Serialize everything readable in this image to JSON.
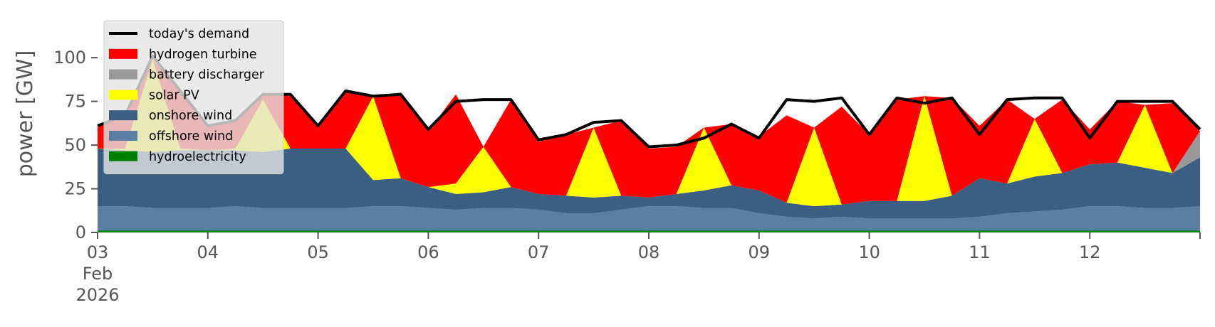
{
  "chart_data": {
    "type": "area",
    "ylabel": "power [GW]",
    "ylim": [
      0,
      120
    ],
    "yticks": [
      "0",
      "25",
      "50",
      "75",
      "100"
    ],
    "xlim": [
      "2026-02-03",
      "2026-02-13"
    ],
    "x_ticks": [
      {
        "date": "2026-02-03",
        "label": "03",
        "sub1": "Feb",
        "sub2": "2026"
      },
      {
        "date": "2026-02-04",
        "label": "04"
      },
      {
        "date": "2026-02-05",
        "label": "05"
      },
      {
        "date": "2026-02-06",
        "label": "06"
      },
      {
        "date": "2026-02-07",
        "label": "07"
      },
      {
        "date": "2026-02-08",
        "label": "08"
      },
      {
        "date": "2026-02-09",
        "label": "09"
      },
      {
        "date": "2026-02-10",
        "label": "10"
      },
      {
        "date": "2026-02-11",
        "label": "11"
      },
      {
        "date": "2026-02-12",
        "label": "12"
      }
    ],
    "grid": false,
    "legend": {
      "position": "top-left"
    },
    "x": [
      "2026-02-03 00:00",
      "2026-02-03 06:00",
      "2026-02-03 12:00",
      "2026-02-03 18:00",
      "2026-02-04 00:00",
      "2026-02-04 06:00",
      "2026-02-04 12:00",
      "2026-02-04 18:00",
      "2026-02-05 00:00",
      "2026-02-05 06:00",
      "2026-02-05 12:00",
      "2026-02-05 18:00",
      "2026-02-06 00:00",
      "2026-02-06 06:00",
      "2026-02-06 12:00",
      "2026-02-06 18:00",
      "2026-02-07 00:00",
      "2026-02-07 06:00",
      "2026-02-07 12:00",
      "2026-02-07 18:00",
      "2026-02-08 00:00",
      "2026-02-08 06:00",
      "2026-02-08 12:00",
      "2026-02-08 18:00",
      "2026-02-09 00:00",
      "2026-02-09 06:00",
      "2026-02-09 12:00",
      "2026-02-09 18:00",
      "2026-02-10 00:00",
      "2026-02-10 06:00",
      "2026-02-10 12:00",
      "2026-02-10 18:00",
      "2026-02-11 00:00",
      "2026-02-11 06:00",
      "2026-02-11 12:00",
      "2026-02-11 18:00",
      "2026-02-12 00:00",
      "2026-02-12 06:00",
      "2026-02-12 12:00",
      "2026-02-12 18:00",
      "2026-02-13 00:00"
    ],
    "series": [
      {
        "name": "hydroelectricity",
        "color": "#008000",
        "values": [
          1,
          1,
          1,
          1,
          1,
          1,
          1,
          1,
          1,
          1,
          1,
          1,
          1,
          1,
          1,
          1,
          1,
          1,
          1,
          1,
          1,
          1,
          1,
          1,
          1,
          1,
          1,
          1,
          1,
          1,
          1,
          1,
          1,
          1,
          1,
          1,
          1,
          1,
          1,
          1,
          1
        ]
      },
      {
        "name": "offshore wind",
        "color": "#5a7fa2",
        "values": [
          14,
          14,
          13,
          13,
          13,
          14,
          13,
          13,
          13,
          13,
          14,
          14,
          13,
          12,
          13,
          13,
          12,
          10,
          10,
          12,
          14,
          14,
          13,
          13,
          10,
          8,
          7,
          8,
          7,
          7,
          7,
          7,
          8,
          10,
          11,
          12,
          14,
          14,
          13,
          13,
          14
        ]
      },
      {
        "name": "onshore wind",
        "color": "#3a5f82",
        "values": [
          33,
          32,
          32,
          33,
          33,
          32,
          32,
          34,
          34,
          34,
          15,
          16,
          12,
          9,
          9,
          12,
          9,
          10,
          9,
          8,
          5,
          7,
          10,
          13,
          13,
          8,
          7,
          7,
          10,
          10,
          10,
          13,
          22,
          17,
          20,
          21,
          24,
          25,
          23,
          20,
          28
        ]
      },
      {
        "name": "solar PV",
        "color": "#ffff00",
        "values": [
          0,
          1,
          53,
          1,
          0,
          1,
          30,
          0,
          0,
          0,
          48,
          0,
          0,
          6,
          26,
          0,
          0,
          0,
          40,
          0,
          0,
          0,
          36,
          0,
          0,
          0,
          45,
          0,
          0,
          0,
          60,
          0,
          0,
          0,
          33,
          0,
          0,
          0,
          36,
          0,
          0
        ]
      },
      {
        "name": "battery discharger",
        "color": "#999999",
        "values": [
          0,
          0,
          0,
          0,
          0,
          0,
          0,
          0,
          0,
          0,
          0,
          0,
          0,
          0,
          0,
          0,
          0,
          0,
          0,
          0,
          0,
          0,
          0,
          0,
          0,
          0,
          0,
          0,
          0,
          0,
          0,
          0,
          0,
          0,
          0,
          0,
          0,
          0,
          0,
          0,
          15
        ]
      },
      {
        "name": "hydrogen turbine",
        "color": "#ff0000",
        "values": [
          12,
          20,
          0,
          33,
          14,
          17,
          4,
          30,
          12,
          33,
          0,
          49,
          32,
          51,
          0,
          50,
          30,
          35,
          0,
          43,
          28,
          27,
          0,
          35,
          31,
          50,
          0,
          56,
          38,
          58,
          0,
          56,
          30,
          48,
          0,
          42,
          20,
          35,
          0,
          40,
          0
        ]
      }
    ],
    "demand": {
      "name": "today's demand",
      "color": "#000000",
      "values": [
        61,
        67,
        101,
        81,
        61,
        64,
        79,
        79,
        61,
        81,
        78,
        79,
        59,
        75,
        76,
        76,
        53,
        56,
        63,
        64,
        49,
        50,
        54,
        62,
        54,
        76,
        75,
        77,
        56,
        77,
        74,
        77,
        56,
        76,
        77,
        77,
        54,
        75,
        75,
        75,
        59
      ]
    }
  }
}
